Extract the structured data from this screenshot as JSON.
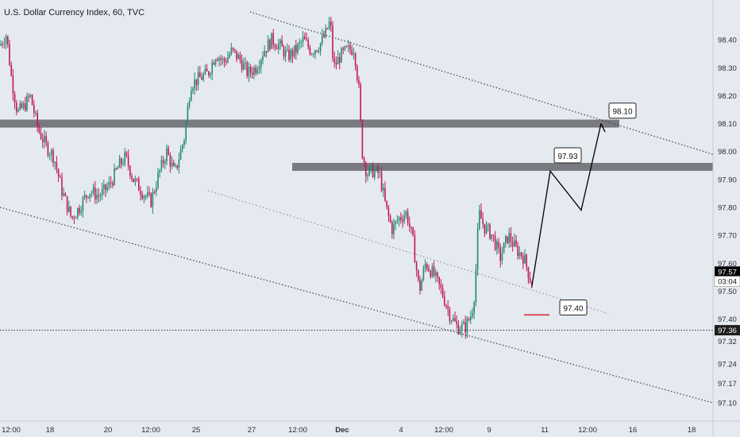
{
  "header": {
    "title": "U.S. Dollar Currency Index, 60, TVC"
  },
  "colors": {
    "background": "#e5e9f0",
    "up": "#1f8a70",
    "down": "#c2185b",
    "zone": "#6b6e73",
    "channel": "#3a3d42",
    "projection": "#000000",
    "marker": "#d32f2f",
    "current_price_bg": "#000000"
  },
  "chart_data": {
    "type": "candlestick",
    "title": "U.S. Dollar Currency Index, 60, TVC",
    "y_axis": {
      "range": [
        97.08,
        98.48
      ],
      "ticks": [
        "98.40",
        "98.30",
        "98.20",
        "98.10",
        "98.00",
        "97.90",
        "97.80",
        "97.70",
        "97.60",
        "97.50",
        "97.40",
        "97.32",
        "97.24",
        "97.17",
        "97.10"
      ],
      "position": "right"
    },
    "x_axis": {
      "ticks": [
        "12:00",
        "18",
        "20",
        "12:00",
        "25",
        "27",
        "12:00",
        "Dec",
        "4",
        "12:00",
        "9",
        "11",
        "12:00",
        "16",
        "18"
      ]
    },
    "price_path": [
      [
        0,
        98.38
      ],
      [
        8,
        98.42
      ],
      [
        15,
        98.25
      ],
      [
        22,
        98.14
      ],
      [
        30,
        98.16
      ],
      [
        38,
        98.2
      ],
      [
        48,
        98.08
      ],
      [
        58,
        98.02
      ],
      [
        68,
        97.98
      ],
      [
        78,
        97.86
      ],
      [
        90,
        97.76
      ],
      [
        100,
        97.8
      ],
      [
        112,
        97.86
      ],
      [
        125,
        97.84
      ],
      [
        138,
        97.88
      ],
      [
        150,
        97.95
      ],
      [
        158,
        97.98
      ],
      [
        168,
        97.9
      ],
      [
        178,
        97.86
      ],
      [
        190,
        97.82
      ],
      [
        200,
        97.92
      ],
      [
        210,
        98.0
      ],
      [
        220,
        97.92
      ],
      [
        232,
        98.05
      ],
      [
        240,
        98.24
      ],
      [
        250,
        98.26
      ],
      [
        262,
        98.28
      ],
      [
        272,
        98.35
      ],
      [
        282,
        98.32
      ],
      [
        292,
        98.36
      ],
      [
        302,
        98.33
      ],
      [
        312,
        98.28
      ],
      [
        322,
        98.3
      ],
      [
        332,
        98.36
      ],
      [
        342,
        98.4
      ],
      [
        352,
        98.38
      ],
      [
        362,
        98.34
      ],
      [
        372,
        98.36
      ],
      [
        382,
        98.4
      ],
      [
        392,
        98.36
      ],
      [
        402,
        98.38
      ],
      [
        410,
        98.42
      ],
      [
        416,
        98.47
      ],
      [
        420,
        98.3
      ],
      [
        428,
        98.34
      ],
      [
        436,
        98.36
      ],
      [
        446,
        98.37
      ],
      [
        452,
        98.22
      ],
      [
        456,
        98.0
      ],
      [
        462,
        97.92
      ],
      [
        470,
        97.93
      ],
      [
        478,
        97.92
      ],
      [
        486,
        97.8
      ],
      [
        494,
        97.72
      ],
      [
        502,
        97.76
      ],
      [
        512,
        97.78
      ],
      [
        520,
        97.68
      ],
      [
        528,
        97.5
      ],
      [
        536,
        97.6
      ],
      [
        546,
        97.56
      ],
      [
        556,
        97.5
      ],
      [
        566,
        97.42
      ],
      [
        576,
        97.37
      ],
      [
        586,
        97.37
      ],
      [
        594,
        97.42
      ],
      [
        598,
        97.5
      ],
      [
        603,
        97.78
      ],
      [
        610,
        97.73
      ],
      [
        620,
        97.7
      ],
      [
        630,
        97.62
      ],
      [
        640,
        97.7
      ],
      [
        650,
        97.65
      ],
      [
        660,
        97.62
      ],
      [
        670,
        97.52
      ]
    ],
    "support_zones": [
      {
        "price": 98.1,
        "x_from": 0,
        "x_to": 780
      },
      {
        "price": 97.945,
        "x_from": 368,
        "x_to": 898
      }
    ],
    "channel_lines": [
      {
        "p1": [
          315,
          98.5
        ],
        "p2": [
          898,
          97.99
        ]
      },
      {
        "p1": [
          262,
          97.86
        ],
        "p2": [
          766,
          97.42
        ]
      },
      {
        "p1": [
          0,
          97.8
        ],
        "p2": [
          898,
          97.1
        ]
      }
    ],
    "horizontal_line": {
      "price": 97.36
    },
    "projection_path": [
      [
        670,
        97.52
      ],
      [
        693,
        97.93
      ],
      [
        732,
        97.79
      ],
      [
        757,
        98.1
      ]
    ],
    "arrow_head": [
      762,
      98.07
    ],
    "red_marker": {
      "x_from": 660,
      "x_to": 692,
      "price": 97.415
    },
    "annotations": [
      {
        "label": "98.10",
        "x": 768,
        "price": 98.145
      },
      {
        "label": "97.93",
        "x": 699,
        "price": 97.985
      },
      {
        "label": "97.40",
        "x": 706,
        "price": 97.44
      }
    ],
    "price_labels": [
      {
        "label": "97.57",
        "price": 97.57,
        "style": "current"
      },
      {
        "label": "03:04",
        "price": 97.535,
        "style": "countdown"
      },
      {
        "label": "97.36",
        "price": 97.36,
        "style": "line"
      }
    ]
  }
}
